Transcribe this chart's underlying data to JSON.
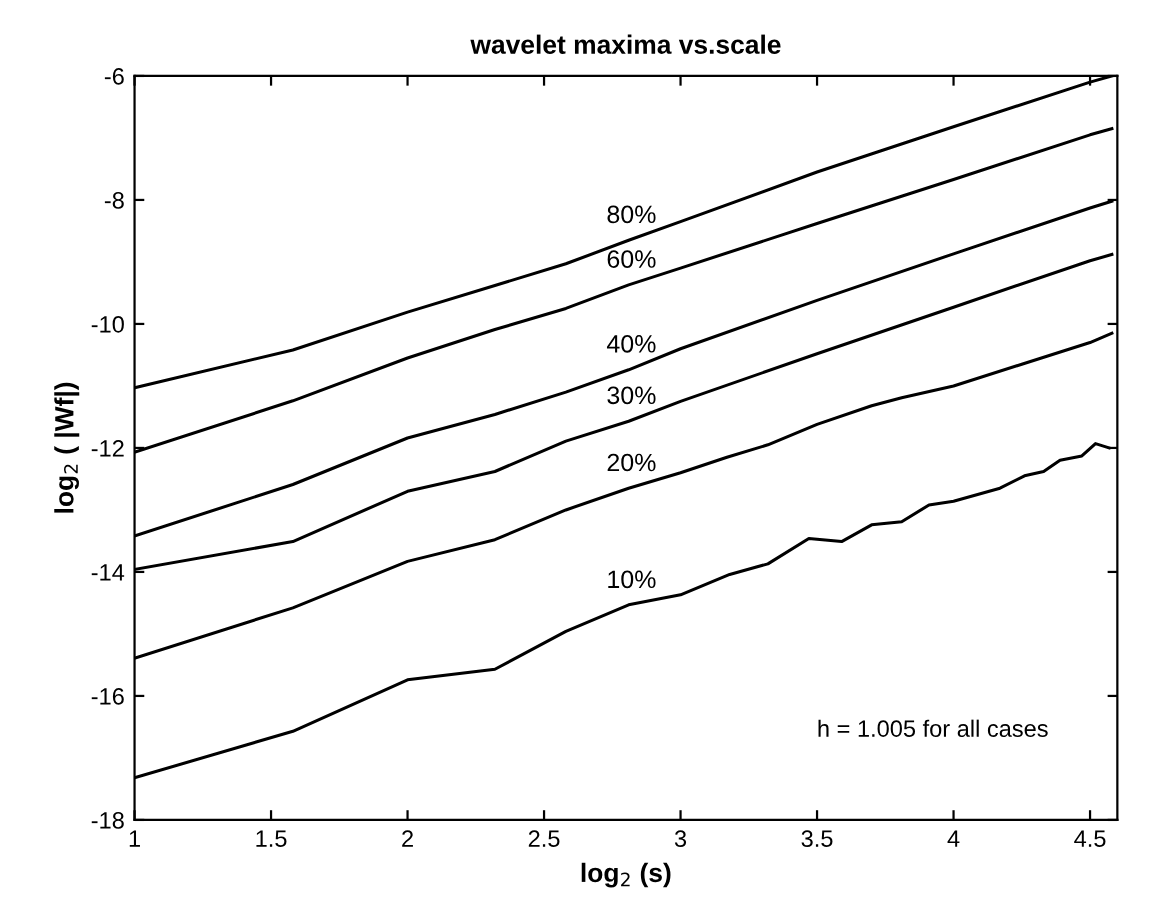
{
  "chart_data": {
    "type": "line",
    "title": "wavelet maxima vs.scale",
    "xlabel": "log$_{2}$ (s)",
    "ylabel": "log$_{2}$ ( |Wf|)",
    "xlim": [
      1,
      4.6
    ],
    "ylim": [
      -18,
      -6
    ],
    "xticks": [
      1,
      1.5,
      2,
      2.5,
      3,
      3.5,
      4,
      4.5
    ],
    "yticks": [
      -18,
      -16,
      -14,
      -12,
      -10,
      -8,
      -6
    ],
    "grid": false,
    "legend": false,
    "marker": "none",
    "line_style": "solid",
    "annotations": [
      "h = 1.005 for all cases"
    ],
    "series": [
      {
        "name": "80%",
        "color": "#000000",
        "x": [
          1,
          1.58,
          2,
          2.32,
          2.58,
          2.81,
          3,
          3.5,
          4,
          4.5,
          4.58
        ],
        "values": [
          -11.03,
          -10.42,
          -9.81,
          -9.38,
          -9.03,
          -8.65,
          -8.35,
          -7.55,
          -6.82,
          -6.1,
          -6.0
        ]
      },
      {
        "name": "60%",
        "color": "#000000",
        "x": [
          1,
          1.58,
          2,
          2.32,
          2.58,
          2.81,
          3,
          3.5,
          4,
          4.5,
          4.58
        ],
        "values": [
          -12.07,
          -11.24,
          -10.55,
          -10.09,
          -9.75,
          -9.37,
          -9.1,
          -8.38,
          -7.67,
          -6.95,
          -6.85
        ]
      },
      {
        "name": "40%",
        "color": "#000000",
        "x": [
          1,
          1.58,
          2,
          2.32,
          2.58,
          2.81,
          3,
          3.5,
          4,
          4.5,
          4.58
        ],
        "values": [
          -13.42,
          -12.59,
          -11.84,
          -11.46,
          -11.1,
          -10.74,
          -10.4,
          -9.62,
          -8.87,
          -8.13,
          -8.02
        ]
      },
      {
        "name": "30%",
        "color": "#000000",
        "x": [
          1,
          1.58,
          2,
          2.32,
          2.58,
          2.81,
          3,
          3.5,
          4,
          4.5,
          4.58
        ],
        "values": [
          -13.96,
          -13.51,
          -12.7,
          -12.38,
          -11.89,
          -11.57,
          -11.25,
          -10.48,
          -9.73,
          -8.98,
          -8.88
        ]
      },
      {
        "name": "20%",
        "color": "#000000",
        "x": [
          1,
          1.58,
          2,
          2.32,
          2.58,
          2.81,
          3,
          3.17,
          3.32,
          3.5,
          3.7,
          3.81,
          4,
          4.25,
          4.5,
          4.58
        ],
        "values": [
          -15.39,
          -14.58,
          -13.83,
          -13.48,
          -13.0,
          -12.65,
          -12.4,
          -12.15,
          -11.95,
          -11.62,
          -11.32,
          -11.19,
          -11.0,
          -10.65,
          -10.3,
          -10.15
        ]
      },
      {
        "name": "10%",
        "color": "#000000",
        "x": [
          1,
          1.58,
          2,
          2.32,
          2.58,
          2.81,
          3,
          3.18,
          3.32,
          3.47,
          3.59,
          3.7,
          3.81,
          3.91,
          4,
          4.17,
          4.26,
          4.33,
          4.39,
          4.47,
          4.52,
          4.57
        ],
        "values": [
          -17.32,
          -16.57,
          -15.74,
          -15.57,
          -14.96,
          -14.53,
          -14.37,
          -14.04,
          -13.87,
          -13.46,
          -13.51,
          -13.24,
          -13.19,
          -12.92,
          -12.86,
          -12.65,
          -12.45,
          -12.38,
          -12.2,
          -12.13,
          -11.93,
          -12.0
        ]
      }
    ]
  }
}
